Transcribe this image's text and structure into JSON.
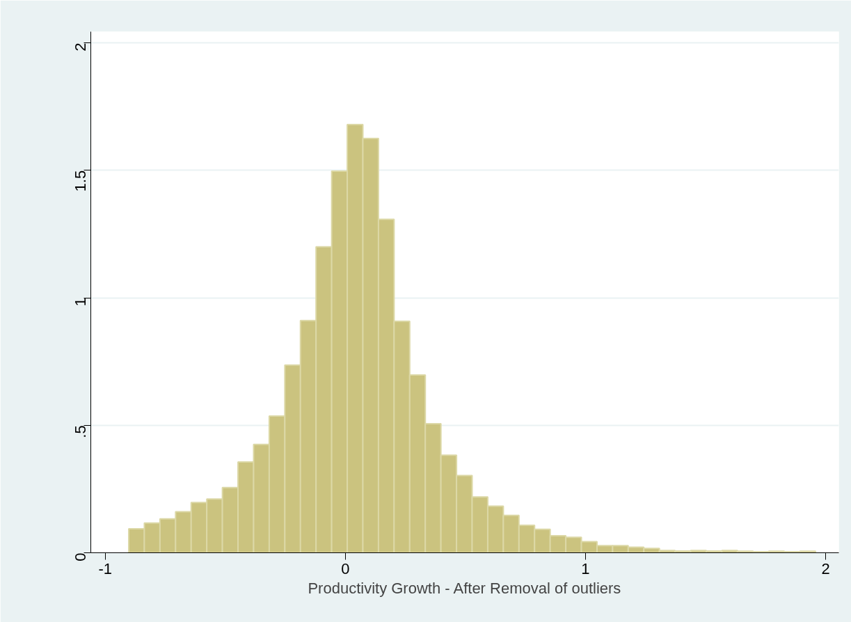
{
  "chart_data": {
    "type": "histogram",
    "xlabel": "Productivity Growth - After Removal of outliers",
    "bins": [
      -0.902,
      -0.837,
      -0.772,
      -0.707,
      -0.642,
      -0.577,
      -0.512,
      -0.447,
      -0.382,
      -0.317,
      -0.252,
      -0.187,
      -0.122,
      -0.057,
      0.008,
      0.073,
      0.138,
      0.203,
      0.268,
      0.333,
      0.398,
      0.463,
      0.528,
      0.593,
      0.658,
      0.723,
      0.788,
      0.853,
      0.918,
      0.983,
      1.048,
      1.113,
      1.178,
      1.243,
      1.308,
      1.373,
      1.438,
      1.503,
      1.568,
      1.633,
      1.698,
      1.763,
      1.828,
      1.893,
      1.958
    ],
    "values": [
      0.094,
      0.117,
      0.133,
      0.161,
      0.197,
      0.211,
      0.256,
      0.356,
      0.425,
      0.536,
      0.736,
      0.911,
      1.2,
      1.497,
      1.68,
      1.625,
      1.308,
      0.908,
      0.697,
      0.506,
      0.383,
      0.303,
      0.219,
      0.183,
      0.147,
      0.108,
      0.092,
      0.067,
      0.061,
      0.044,
      0.028,
      0.028,
      0.022,
      0.017,
      0.009,
      0.007,
      0.009,
      0.007,
      0.009,
      0.006,
      0.004,
      0.006,
      0.004,
      0.006
    ],
    "color": "#cbc37f",
    "xlim": [
      -1.06,
      2.055
    ],
    "ylim": [
      0,
      2.044
    ],
    "xticks": [
      -1,
      0,
      1,
      2
    ],
    "yticks": [
      0,
      {
        "value": 0.5,
        "label": ".5"
      },
      1,
      1.5,
      2
    ],
    "grid": "y"
  }
}
